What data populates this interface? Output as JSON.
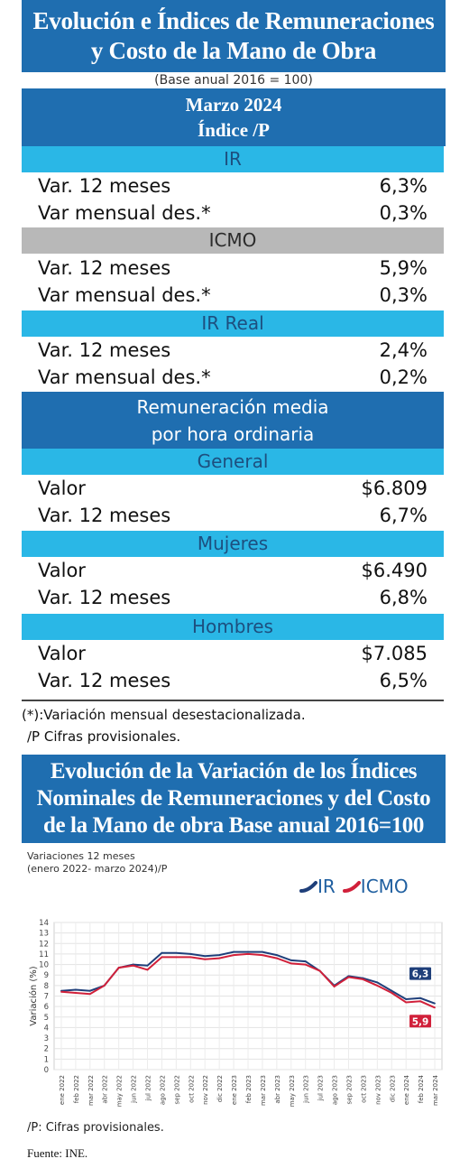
{
  "header": {
    "title_line1": "Evolución e Índices de Remuneraciones",
    "title_line2": "y Costo de la Mano de Obra",
    "base_note": "(Base anual 2016 = 100)",
    "month": "Marzo 2024",
    "index_label": "Índice /P"
  },
  "sections": {
    "ir": {
      "title": "IR",
      "rows": [
        {
          "label": "Var. 12 meses",
          "value": "6,3%"
        },
        {
          "label": "Var mensual des.*",
          "value": "0,3%"
        }
      ]
    },
    "icmo": {
      "title": "ICMO",
      "rows": [
        {
          "label": "Var. 12 meses",
          "value": "5,9%"
        },
        {
          "label": "Var mensual des.*",
          "value": "0,3%"
        }
      ]
    },
    "ir_real": {
      "title": "IR Real",
      "rows": [
        {
          "label": "Var. 12 meses",
          "value": "2,4%"
        },
        {
          "label": "Var mensual des.*",
          "value": "0,2%"
        }
      ]
    },
    "remuneracion": {
      "title_line1": "Remuneración media",
      "title_line2": "por hora ordinaria"
    },
    "general": {
      "title": "General",
      "rows": [
        {
          "label": "Valor",
          "value": "$6.809"
        },
        {
          "label": "Var. 12 meses",
          "value": "6,7%"
        }
      ]
    },
    "mujeres": {
      "title": "Mujeres",
      "rows": [
        {
          "label": "Valor",
          "value": "$6.490"
        },
        {
          "label": "Var. 12 meses",
          "value": "6,8%"
        }
      ]
    },
    "hombres": {
      "title": "Hombres",
      "rows": [
        {
          "label": "Valor",
          "value": "$7.085"
        },
        {
          "label": "Var. 12 meses",
          "value": "6,5%"
        }
      ]
    }
  },
  "footnotes": {
    "note1": "(*):Variación mensual desestacionalizada.",
    "note2": "/P Cifras provisionales."
  },
  "chart_header": {
    "line1": "Evolución de la Variación de los Índices",
    "line2": "Nominales de Remuneraciones y del Costo",
    "line3": "de la Mano de obra Base anual 2016=100"
  },
  "colors": {
    "dark_blue": "#1f6eb0",
    "cyan": "#2ab7e6",
    "gray": "#b8b8b8",
    "ir_line": "#1f3f7a",
    "icmo_line": "#d1203a"
  },
  "chart_data": {
    "type": "line",
    "subtitle_line1": "Variaciones 12 meses",
    "subtitle_line2": "(enero 2022- marzo 2024)/P",
    "ylabel": "Variación (%)",
    "ylim": [
      0,
      14
    ],
    "yticks": [
      "0",
      "1",
      "2",
      "3",
      "4",
      "5",
      "6",
      "7",
      "8",
      "9",
      "10",
      "11",
      "12",
      "13",
      "14"
    ],
    "grid": true,
    "legend_position": "top-right",
    "legend": [
      "IR",
      "ICMO"
    ],
    "x": [
      "ene 2022",
      "feb 2022",
      "mar 2022",
      "abr 2022",
      "may 2022",
      "jun 2022",
      "jul 2022",
      "ago 2022",
      "sep 2022",
      "oct 2022",
      "nov 2022",
      "dic 2022",
      "ene 2023",
      "feb 2023",
      "mar 2023",
      "abr 2023",
      "may 2023",
      "jun 2023",
      "jul 2023",
      "ago 2023",
      "sep 2023",
      "oct 2023",
      "nov 2023",
      "dic 2023",
      "ene 2024",
      "feb 2024",
      "mar 2024"
    ],
    "series": [
      {
        "name": "IR",
        "values": [
          7.5,
          7.6,
          7.5,
          8.0,
          9.7,
          10.0,
          9.9,
          11.1,
          11.1,
          11.0,
          10.8,
          10.9,
          11.2,
          11.2,
          11.2,
          10.9,
          10.4,
          10.3,
          9.4,
          8.0,
          8.9,
          8.7,
          8.3,
          7.5,
          6.7,
          6.8,
          6.3
        ]
      },
      {
        "name": "ICMO",
        "values": [
          7.4,
          7.3,
          7.2,
          8.0,
          9.7,
          9.9,
          9.5,
          10.7,
          10.7,
          10.7,
          10.5,
          10.6,
          10.9,
          11.0,
          10.9,
          10.6,
          10.1,
          10.0,
          9.4,
          7.9,
          8.8,
          8.6,
          8.0,
          7.3,
          6.4,
          6.5,
          5.9
        ]
      }
    ],
    "end_labels": {
      "ir": "6,3",
      "icmo": "5,9"
    }
  },
  "chart_footer": {
    "note": "/P:   Cifras provisionales.",
    "source": "Fuente: INE."
  }
}
